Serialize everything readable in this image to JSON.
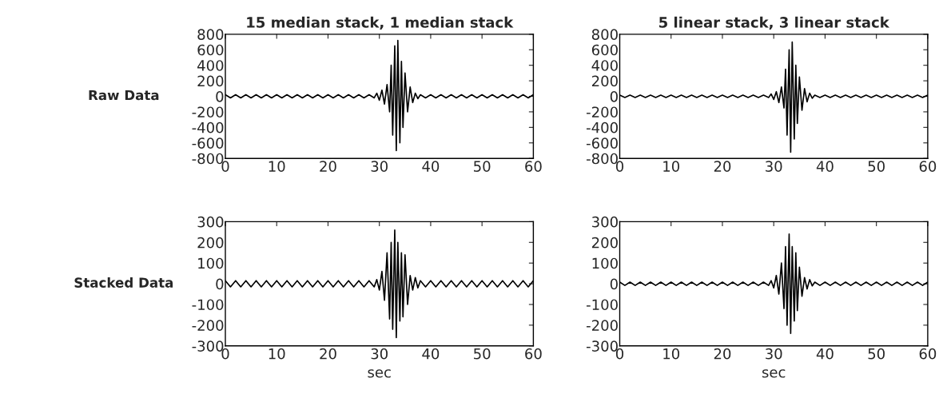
{
  "chart_data": [
    {
      "type": "line",
      "title": "15 median stack, 1 median stack",
      "annotations": [
        "Raw Data"
      ],
      "x": [
        0,
        1,
        2,
        3,
        4,
        5,
        6,
        7,
        8,
        9,
        10,
        11,
        12,
        13,
        14,
        15,
        16,
        17,
        18,
        19,
        20,
        21,
        22,
        23,
        24,
        25,
        26,
        27,
        28,
        29,
        29.5,
        30,
        30.5,
        31,
        31.5,
        32,
        32.3,
        32.6,
        33,
        33.3,
        33.6,
        34,
        34.3,
        34.6,
        35,
        35.5,
        36,
        36.5,
        37,
        37.5,
        38,
        39,
        40,
        41,
        42,
        43,
        44,
        45,
        46,
        47,
        48,
        49,
        50,
        51,
        52,
        53,
        54,
        55,
        56,
        57,
        58,
        59,
        60
      ],
      "series": [
        {
          "color": "#000000",
          "values": [
            20,
            -20,
            20,
            -20,
            20,
            -20,
            20,
            -20,
            20,
            -20,
            20,
            -20,
            20,
            -20,
            20,
            -20,
            20,
            -20,
            20,
            -20,
            20,
            -20,
            20,
            -20,
            20,
            -20,
            20,
            -20,
            20,
            -20,
            40,
            -50,
            80,
            -100,
            150,
            -200,
            400,
            -500,
            650,
            -700,
            720,
            -600,
            450,
            -400,
            300,
            -200,
            120,
            -80,
            40,
            -30,
            20,
            -20,
            20,
            -20,
            20,
            -20,
            20,
            -20,
            20,
            -20,
            20,
            -20,
            20,
            -20,
            20,
            -20,
            20,
            -20,
            20,
            -20,
            20,
            -20,
            20
          ]
        }
      ],
      "xlim": [
        0,
        60
      ],
      "xticks": [
        0,
        10,
        20,
        30,
        40,
        50,
        60
      ],
      "ylim": [
        -800,
        800
      ],
      "yticks": [
        -800,
        -600,
        -400,
        -200,
        0,
        200,
        400,
        600,
        800
      ],
      "grid": false,
      "marker": "none",
      "line_style": "solid"
    },
    {
      "type": "line",
      "title": "5 linear stack, 3 linear stack",
      "x": [
        0,
        1,
        2,
        3,
        4,
        5,
        6,
        7,
        8,
        9,
        10,
        11,
        12,
        13,
        14,
        15,
        16,
        17,
        18,
        19,
        20,
        21,
        22,
        23,
        24,
        25,
        26,
        27,
        28,
        29,
        29.5,
        30,
        30.5,
        31,
        31.5,
        32,
        32.3,
        32.6,
        33,
        33.3,
        33.6,
        34,
        34.3,
        34.6,
        35,
        35.5,
        36,
        36.5,
        37,
        37.5,
        38,
        39,
        40,
        41,
        42,
        43,
        44,
        45,
        46,
        47,
        48,
        49,
        50,
        51,
        52,
        53,
        54,
        55,
        56,
        57,
        58,
        59,
        60
      ],
      "series": [
        {
          "color": "#000000",
          "values": [
            15,
            -15,
            15,
            -15,
            15,
            -15,
            15,
            -15,
            15,
            -15,
            15,
            -15,
            15,
            -15,
            15,
            -15,
            15,
            -15,
            15,
            -15,
            15,
            -15,
            15,
            -15,
            15,
            -15,
            15,
            -15,
            15,
            -15,
            30,
            -40,
            60,
            -80,
            120,
            -150,
            350,
            -500,
            600,
            -720,
            700,
            -550,
            400,
            -350,
            250,
            -180,
            100,
            -70,
            40,
            -25,
            15,
            -15,
            15,
            -15,
            15,
            -15,
            15,
            -15,
            15,
            -15,
            15,
            -15,
            15,
            -15,
            15,
            -15,
            15,
            -15,
            15,
            -15,
            15,
            -15,
            15
          ]
        }
      ],
      "xlim": [
        0,
        60
      ],
      "xticks": [
        0,
        10,
        20,
        30,
        40,
        50,
        60
      ],
      "ylim": [
        -800,
        800
      ],
      "yticks": [
        -800,
        -600,
        -400,
        -200,
        0,
        200,
        400,
        600,
        800
      ],
      "grid": false,
      "marker": "none",
      "line_style": "solid"
    },
    {
      "type": "line",
      "xlabel": "sec",
      "annotations": [
        "Stacked Data"
      ],
      "x": [
        0,
        1,
        2,
        3,
        4,
        5,
        6,
        7,
        8,
        9,
        10,
        11,
        12,
        13,
        14,
        15,
        16,
        17,
        18,
        19,
        20,
        21,
        22,
        23,
        24,
        25,
        26,
        27,
        28,
        29,
        29.5,
        30,
        30.5,
        31,
        31.5,
        32,
        32.3,
        32.6,
        33,
        33.3,
        33.6,
        34,
        34.3,
        34.6,
        35,
        35.5,
        36,
        36.5,
        37,
        37.5,
        38,
        39,
        40,
        41,
        42,
        43,
        44,
        45,
        46,
        47,
        48,
        49,
        50,
        51,
        52,
        53,
        54,
        55,
        56,
        57,
        58,
        59,
        60
      ],
      "series": [
        {
          "color": "#000000",
          "values": [
            15,
            -15,
            15,
            -15,
            15,
            -15,
            15,
            -15,
            15,
            -15,
            15,
            -15,
            15,
            -15,
            15,
            -15,
            15,
            -15,
            15,
            -15,
            15,
            -15,
            15,
            -15,
            15,
            -15,
            15,
            -15,
            15,
            -15,
            20,
            -30,
            60,
            -80,
            150,
            -170,
            200,
            -220,
            260,
            -260,
            200,
            -180,
            150,
            -160,
            140,
            -100,
            40,
            -30,
            30,
            -20,
            15,
            -15,
            15,
            -15,
            15,
            -15,
            15,
            -15,
            15,
            -15,
            15,
            -15,
            15,
            -15,
            15,
            -15,
            15,
            -15,
            15,
            -15,
            15,
            -15,
            15
          ]
        }
      ],
      "xlim": [
        0,
        60
      ],
      "xticks": [
        0,
        10,
        20,
        30,
        40,
        50,
        60
      ],
      "ylim": [
        -300,
        300
      ],
      "yticks": [
        -300,
        -200,
        -100,
        0,
        100,
        200,
        300
      ],
      "grid": false,
      "marker": "none",
      "line_style": "solid"
    },
    {
      "type": "line",
      "xlabel": "sec",
      "x": [
        0,
        1,
        2,
        3,
        4,
        5,
        6,
        7,
        8,
        9,
        10,
        11,
        12,
        13,
        14,
        15,
        16,
        17,
        18,
        19,
        20,
        21,
        22,
        23,
        24,
        25,
        26,
        27,
        28,
        29,
        29.5,
        30,
        30.5,
        31,
        31.5,
        32,
        32.3,
        32.6,
        33,
        33.3,
        33.6,
        34,
        34.3,
        34.6,
        35,
        35.5,
        36,
        36.5,
        37,
        37.5,
        38,
        39,
        40,
        41,
        42,
        43,
        44,
        45,
        46,
        47,
        48,
        49,
        50,
        51,
        52,
        53,
        54,
        55,
        56,
        57,
        58,
        59,
        60
      ],
      "series": [
        {
          "color": "#000000",
          "values": [
            8,
            -8,
            8,
            -8,
            8,
            -8,
            8,
            -8,
            8,
            -8,
            8,
            -8,
            8,
            -8,
            8,
            -8,
            8,
            -8,
            8,
            -8,
            8,
            -8,
            8,
            -8,
            8,
            -8,
            8,
            -8,
            8,
            -8,
            15,
            -20,
            40,
            -50,
            100,
            -120,
            180,
            -200,
            240,
            -240,
            180,
            -180,
            150,
            -130,
            80,
            -60,
            30,
            -25,
            20,
            -10,
            8,
            -8,
            8,
            -8,
            8,
            -8,
            8,
            -8,
            8,
            -8,
            8,
            -8,
            8,
            -8,
            8,
            -8,
            8,
            -8,
            8,
            -8,
            8,
            -8,
            8
          ]
        }
      ],
      "xlim": [
        0,
        60
      ],
      "xticks": [
        0,
        10,
        20,
        30,
        40,
        50,
        60
      ],
      "ylim": [
        -300,
        300
      ],
      "yticks": [
        -300,
        -200,
        -100,
        0,
        100,
        200,
        300
      ],
      "grid": false,
      "marker": "none",
      "line_style": "solid"
    }
  ]
}
